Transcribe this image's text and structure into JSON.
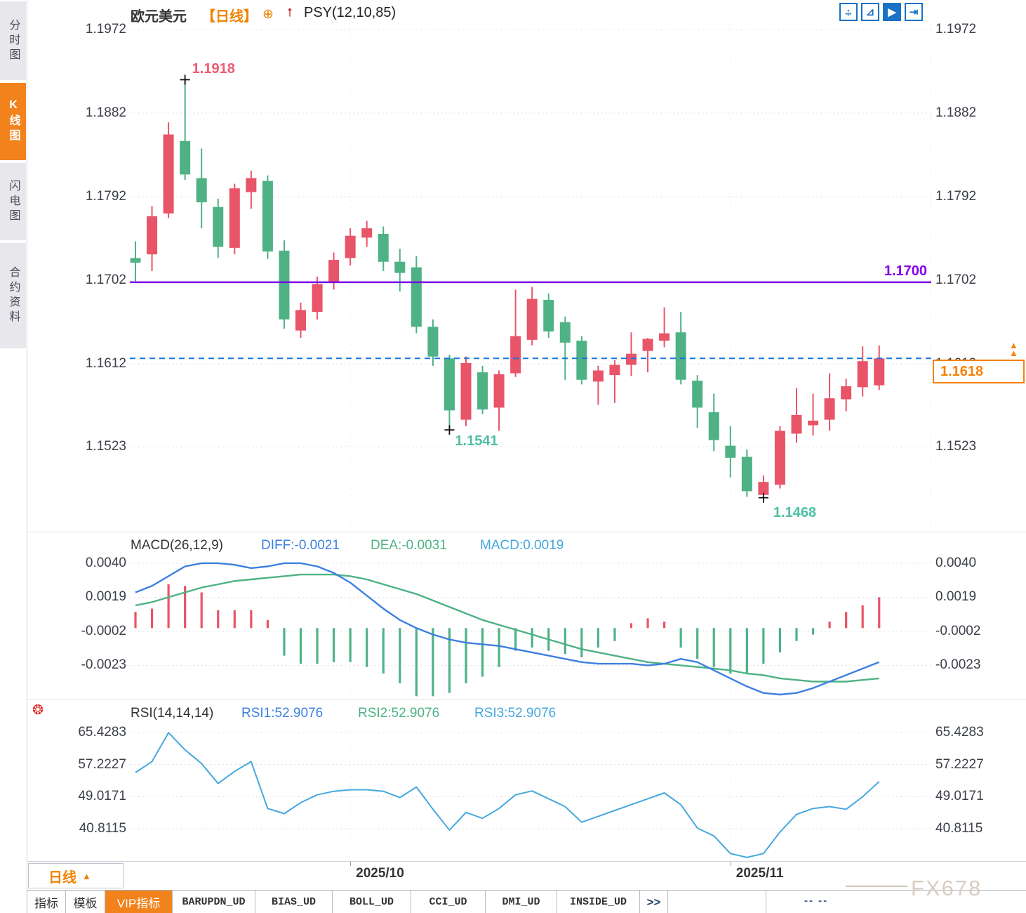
{
  "sidebar": {
    "items": [
      {
        "label": "分时图",
        "active": false
      },
      {
        "label": "K线图",
        "active": true
      },
      {
        "label": "闪电图",
        "active": false
      },
      {
        "label": "合约资料",
        "active": false
      }
    ]
  },
  "header": {
    "symbol": "欧元美元",
    "period_tag": "【日线】",
    "add_icon": "⊕",
    "arrow_icon": "↑",
    "indicator": "PSY(12,10,85)"
  },
  "toolbar": {
    "buttons": [
      {
        "name": "pan-crosshair",
        "glyph": "↔",
        "glyph2": "↕",
        "active": false
      },
      {
        "name": "horizontal-scale",
        "glyph": "⊿",
        "glyph2": "",
        "active": false
      },
      {
        "name": "auto-scroll-play",
        "glyph": "▶",
        "glyph2": "",
        "active": true
      },
      {
        "name": "scroll-to-latest",
        "glyph": "⇥",
        "glyph2": "",
        "active": false
      }
    ]
  },
  "chart_data": {
    "type": "candlestick",
    "symbol": "欧元美元",
    "period": "日线",
    "overlay_indicator": "PSY(12,10,85)",
    "colors": {
      "up": "#e85468",
      "down": "#4eb285",
      "diff_line": "#3c80e0",
      "dea_line": "#4eb285",
      "rsi_line": "#45a8dd",
      "hline": "#7a00e6",
      "last_price_line": "#1675e0",
      "accent_orange": "#f5820a",
      "grid": "#e2e2e2"
    },
    "price_axis": {
      "ticks": [
        1.1972,
        1.1882,
        1.1792,
        1.1702,
        1.1612,
        1.1523
      ]
    },
    "candles": [
      [
        1.1726,
        1.1744,
        1.1701,
        1.1721
      ],
      [
        1.173,
        1.1782,
        1.1712,
        1.1771
      ],
      [
        1.1774,
        1.1872,
        1.1769,
        1.1859
      ],
      [
        1.1852,
        1.1918,
        1.181,
        1.1816
      ],
      [
        1.1812,
        1.1844,
        1.1758,
        1.1786
      ],
      [
        1.1781,
        1.179,
        1.1726,
        1.1738
      ],
      [
        1.1737,
        1.1806,
        1.173,
        1.1801
      ],
      [
        1.1797,
        1.182,
        1.1779,
        1.1812
      ],
      [
        1.1809,
        1.1815,
        1.1725,
        1.1733
      ],
      [
        1.1734,
        1.1745,
        1.165,
        1.166
      ],
      [
        1.1648,
        1.1678,
        1.164,
        1.167
      ],
      [
        1.1668,
        1.1706,
        1.166,
        1.1698
      ],
      [
        1.17,
        1.1732,
        1.1692,
        1.1724
      ],
      [
        1.1726,
        1.1758,
        1.1718,
        1.175
      ],
      [
        1.1748,
        1.1766,
        1.1738,
        1.1758
      ],
      [
        1.1752,
        1.176,
        1.1712,
        1.1722
      ],
      [
        1.1722,
        1.1736,
        1.169,
        1.171
      ],
      [
        1.1716,
        1.1728,
        1.1645,
        1.1652
      ],
      [
        1.1652,
        1.166,
        1.161,
        1.162
      ],
      [
        1.1618,
        1.1622,
        1.1541,
        1.1562
      ],
      [
        1.1552,
        1.162,
        1.1545,
        1.1613
      ],
      [
        1.1603,
        1.161,
        1.1558,
        1.1563
      ],
      [
        1.1565,
        1.1605,
        1.154,
        1.1601
      ],
      [
        1.1602,
        1.1692,
        1.1598,
        1.1642
      ],
      [
        1.1638,
        1.1695,
        1.1632,
        1.1682
      ],
      [
        1.1681,
        1.1688,
        1.164,
        1.1647
      ],
      [
        1.1657,
        1.1663,
        1.1595,
        1.1635
      ],
      [
        1.1637,
        1.1642,
        1.159,
        1.1595
      ],
      [
        1.1593,
        1.161,
        1.1568,
        1.1605
      ],
      [
        1.16,
        1.1616,
        1.157,
        1.1611
      ],
      [
        1.1611,
        1.1646,
        1.1599,
        1.1623
      ],
      [
        1.1626,
        1.164,
        1.1603,
        1.1639
      ],
      [
        1.1637,
        1.1673,
        1.163,
        1.1645
      ],
      [
        1.1646,
        1.1668,
        1.159,
        1.1595
      ],
      [
        1.1594,
        1.16,
        1.1543,
        1.1565
      ],
      [
        1.156,
        1.158,
        1.1518,
        1.153
      ],
      [
        1.1524,
        1.1545,
        1.149,
        1.1511
      ],
      [
        1.1512,
        1.152,
        1.1469,
        1.1475
      ],
      [
        1.1471,
        1.1492,
        1.1468,
        1.1485
      ],
      [
        1.1482,
        1.1545,
        1.1478,
        1.154
      ],
      [
        1.1537,
        1.1586,
        1.1527,
        1.1557
      ],
      [
        1.1546,
        1.158,
        1.1535,
        1.1551
      ],
      [
        1.1552,
        1.1602,
        1.154,
        1.1575
      ],
      [
        1.1574,
        1.1596,
        1.1561,
        1.1588
      ],
      [
        1.1587,
        1.1631,
        1.1577,
        1.1615
      ],
      [
        1.1589,
        1.1632,
        1.1584,
        1.1618
      ]
    ],
    "annotations": {
      "high": {
        "index": 3,
        "price": 1.1918,
        "label": "1.1918"
      },
      "lows": [
        {
          "index": 19,
          "price": 1.1541,
          "label": "1.1541"
        },
        {
          "index": 38,
          "price": 1.1468,
          "label": "1.1468"
        }
      ]
    },
    "hline": {
      "price": 1.17,
      "label": "1.1700"
    },
    "last_price": {
      "value": 1.1618,
      "label": "1.1618"
    },
    "x_ticks": [
      {
        "index": 13,
        "label": "2025/10"
      },
      {
        "index": 36,
        "label": "2025/11"
      }
    ],
    "macd": {
      "title": "MACD(26,12,9)",
      "diff_label": "DIFF:-0.0021",
      "dea_label": "DEA:-0.0031",
      "macd_label": "MACD:0.0019",
      "ticks": [
        0.004,
        0.0019,
        -0.0002,
        -0.0023
      ],
      "hist": [
        0.001,
        0.0012,
        0.0027,
        0.0026,
        0.0022,
        0.0011,
        0.0011,
        0.0011,
        0.0005,
        -0.0017,
        -0.0022,
        -0.0022,
        -0.0021,
        -0.0021,
        -0.0024,
        -0.0028,
        -0.0034,
        -0.0042,
        -0.0042,
        -0.004,
        -0.0034,
        -0.003,
        -0.0024,
        -0.0014,
        -0.0012,
        -0.0014,
        -0.0016,
        -0.0018,
        -0.0012,
        -0.0008,
        0.0003,
        0.0006,
        0.0004,
        -0.0012,
        -0.0019,
        -0.0024,
        -0.0028,
        -0.0028,
        -0.0022,
        -0.0015,
        -0.0008,
        -0.0004,
        0.0004,
        0.001,
        0.0014,
        0.0019
      ],
      "diff": [
        0.0022,
        0.0026,
        0.0032,
        0.0038,
        0.004,
        0.004,
        0.0039,
        0.0037,
        0.0038,
        0.004,
        0.004,
        0.0038,
        0.0034,
        0.0028,
        0.002,
        0.0012,
        0.0005,
        0.0,
        -0.0004,
        -0.0007,
        -0.0009,
        -0.001,
        -0.0011,
        -0.0013,
        -0.0015,
        -0.0017,
        -0.0019,
        -0.0021,
        -0.0022,
        -0.0022,
        -0.0022,
        -0.0023,
        -0.0022,
        -0.0019,
        -0.0021,
        -0.0026,
        -0.0031,
        -0.0036,
        -0.004,
        -0.0041,
        -0.004,
        -0.0037,
        -0.0033,
        -0.0029,
        -0.0025,
        -0.0021
      ],
      "dea": [
        0.0014,
        0.0016,
        0.0019,
        0.0022,
        0.0025,
        0.0027,
        0.0029,
        0.003,
        0.0031,
        0.0032,
        0.0033,
        0.0033,
        0.0033,
        0.0032,
        0.003,
        0.0027,
        0.0024,
        0.0021,
        0.0017,
        0.0013,
        0.0009,
        0.0005,
        0.0002,
        -0.0001,
        -0.0004,
        -0.0007,
        -0.001,
        -0.0013,
        -0.0015,
        -0.0017,
        -0.0019,
        -0.0021,
        -0.0022,
        -0.0023,
        -0.0024,
        -0.0025,
        -0.0026,
        -0.0028,
        -0.0029,
        -0.0031,
        -0.0032,
        -0.0033,
        -0.0033,
        -0.0033,
        -0.0032,
        -0.0031
      ]
    },
    "rsi": {
      "title": "RSI(14,14,14)",
      "r1_label": "RSI1:52.9076",
      "r2_label": "RSI2:52.9076",
      "r3_label": "RSI3:52.9076",
      "ticks": [
        65.4283,
        57.2227,
        49.0171,
        40.8115
      ],
      "values": [
        55.2,
        58.0,
        65.4,
        61.0,
        57.5,
        52.4,
        55.5,
        58.0,
        46.0,
        44.7,
        47.5,
        49.5,
        50.4,
        50.8,
        50.8,
        50.4,
        48.8,
        51.5,
        45.8,
        40.5,
        45.0,
        43.5,
        46.0,
        49.5,
        50.5,
        48.5,
        46.5,
        42.5,
        44.0,
        45.5,
        47.0,
        48.5,
        50.0,
        47.0,
        41.0,
        39.0,
        34.5,
        33.5,
        34.5,
        40.0,
        44.5,
        46.0,
        46.5,
        45.8,
        49.0,
        52.9
      ]
    }
  },
  "xaxis": {
    "period_label": "日线",
    "period_arrow": "▲"
  },
  "tabbar": {
    "tabs": [
      {
        "label": "指标",
        "active": false
      },
      {
        "label": "模板",
        "active": false
      },
      {
        "label": "VIP指标",
        "active": true
      },
      {
        "label": "BARUPDN_UD",
        "active": false
      },
      {
        "label": "BIAS_UD",
        "active": false
      },
      {
        "label": "BOLL_UD",
        "active": false
      },
      {
        "label": "CCI_UD",
        "active": false
      },
      {
        "label": "DMI_UD",
        "active": false
      },
      {
        "label": "INSIDE_UD",
        "active": false
      },
      {
        "label": ">>",
        "active": false
      }
    ],
    "trailing": "-- --"
  },
  "watermark": {
    "text": "FX678"
  },
  "live_icon": "❂",
  "last_arrow_icon": "▲"
}
